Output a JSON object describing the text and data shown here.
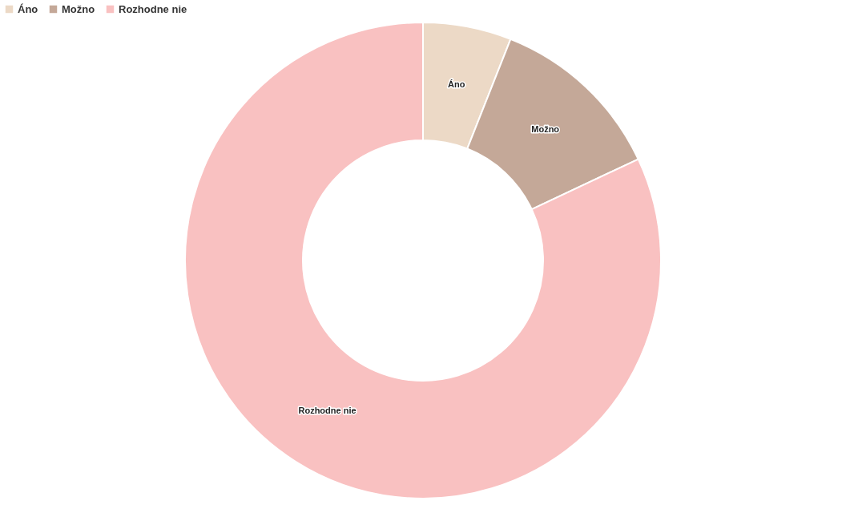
{
  "chart_data": {
    "type": "donut",
    "categories": [
      "Áno",
      "Možno",
      "Rozhodne nie"
    ],
    "values": [
      6,
      12,
      82
    ],
    "colors": [
      "#ecd9c6",
      "#c4a898",
      "#f9c1c1"
    ],
    "legend": "top left"
  }
}
